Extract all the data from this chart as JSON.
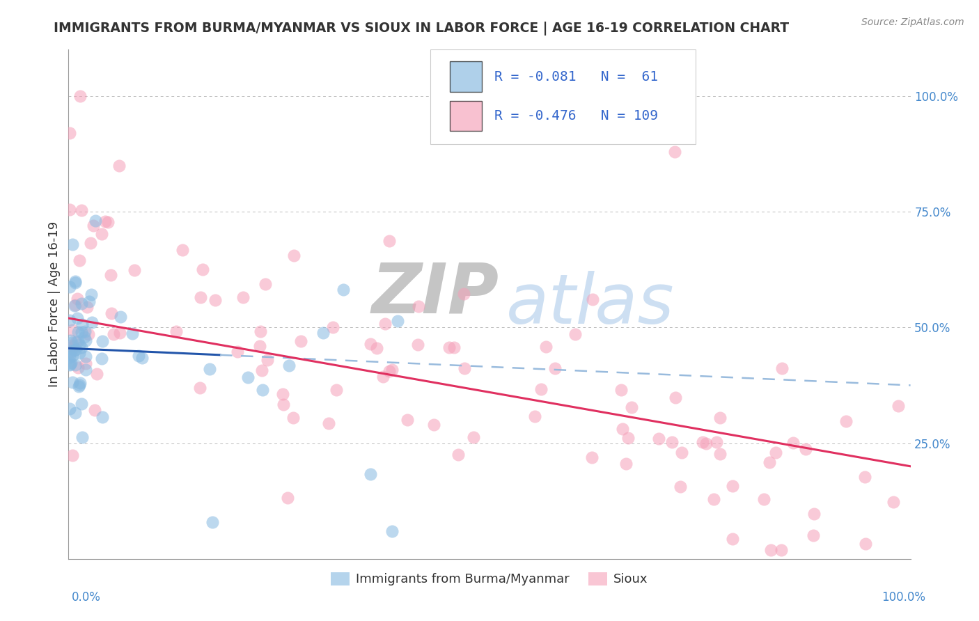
{
  "title": "IMMIGRANTS FROM BURMA/MYANMAR VS SIOUX IN LABOR FORCE | AGE 16-19 CORRELATION CHART",
  "source": "Source: ZipAtlas.com",
  "ylabel": "In Labor Force | Age 16-19",
  "legend_label1": "Immigrants from Burma/Myanmar",
  "legend_label2": "Sioux",
  "R1": "-0.081",
  "N1": "61",
  "R2": "-0.476",
  "N2": "109",
  "color_blue": "#85B8E0",
  "color_pink": "#F5A0B8",
  "color_blue_line": "#2255AA",
  "color_blue_dash": "#99BBDD",
  "color_pink_line": "#E03060",
  "ytick_vals": [
    0.25,
    0.5,
    0.75,
    1.0
  ],
  "ytick_labels": [
    "25.0%",
    "50.0%",
    "75.0%",
    "100.0%"
  ],
  "grid_color": "#BBBBBB",
  "axis_color": "#999999",
  "text_color": "#333333",
  "source_color": "#888888",
  "right_label_color": "#4488CC",
  "legend_text_color": "#3366CC",
  "watermark_zip_color": "#CCCCCC",
  "watermark_atlas_color": "#BDD5EE"
}
